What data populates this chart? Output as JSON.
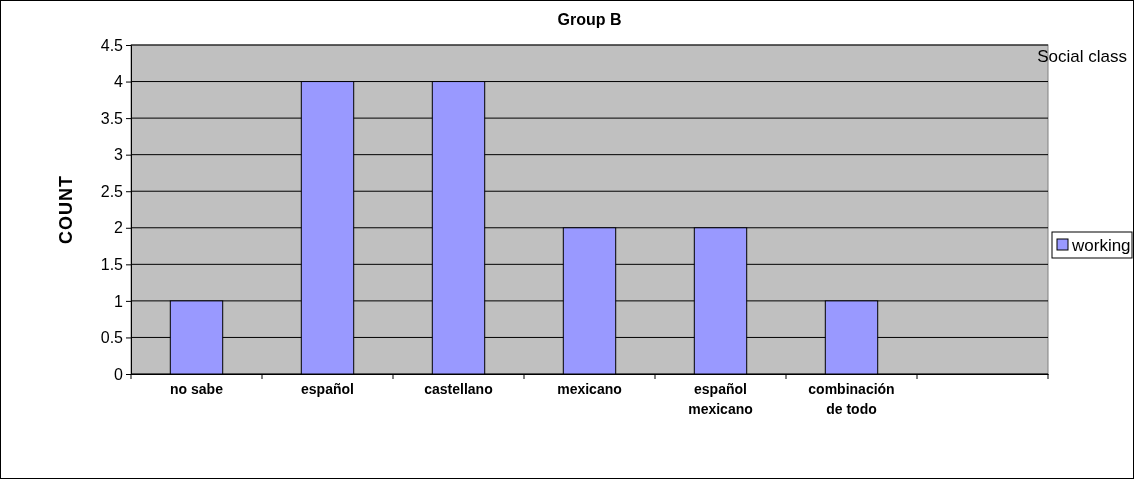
{
  "chart_data": {
    "type": "bar",
    "title": "Group B",
    "ylabel": "COUNT",
    "legend_title": "Social class",
    "categories": [
      "no sabe",
      "español",
      "castellano",
      "mexicano",
      "español mexicano",
      "combinación de todo",
      null
    ],
    "series": [
      {
        "name": "working",
        "color": "#9999ff",
        "values": [
          1,
          4,
          4,
          2,
          2,
          1,
          null
        ]
      }
    ],
    "ylim": [
      0,
      4.5
    ],
    "yticks": [
      0,
      0.5,
      1,
      1.5,
      2,
      2.5,
      3,
      3.5,
      4,
      4.5
    ],
    "grid": "y",
    "legend": "right"
  }
}
